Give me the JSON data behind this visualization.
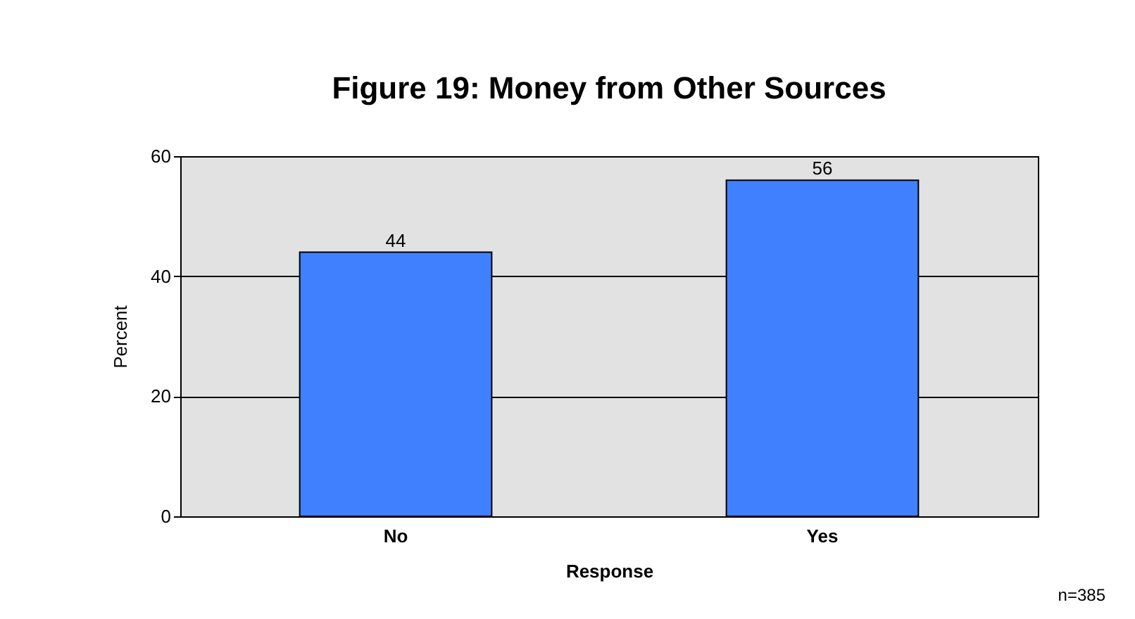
{
  "chart_data": {
    "type": "bar",
    "title": "Figure 19: Money from Other Sources",
    "xlabel": "Response",
    "ylabel": "Percent",
    "categories": [
      "No",
      "Yes"
    ],
    "values": [
      44,
      56
    ],
    "color": "#4080ff",
    "ylim": [
      0,
      60
    ],
    "yticks": [
      0,
      20,
      40,
      60
    ],
    "grid": "y",
    "data_labels": true,
    "annotations": [
      "n=385"
    ]
  }
}
